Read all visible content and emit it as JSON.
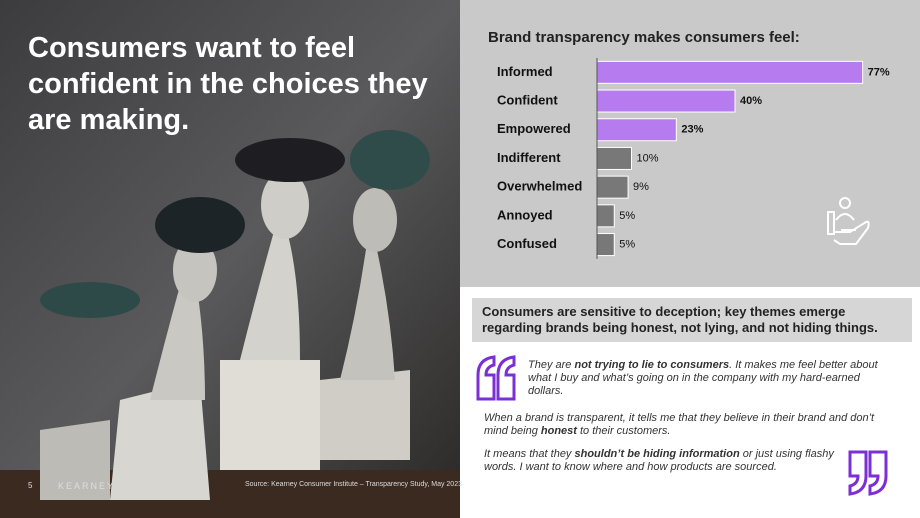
{
  "headline": "Consumers want to feel confident in the choices they are making.",
  "page_number": "5",
  "brand": "KEARNEY",
  "source": "Source: Kearney Consumer Institute – Transparency Study, May 2023",
  "chart_data": {
    "type": "bar",
    "orientation": "horizontal",
    "title": "Brand transparency makes consumers feel:",
    "categories": [
      "Informed",
      "Confident",
      "Empowered",
      "Indifferent",
      "Overwhelmed",
      "Annoyed",
      "Confused"
    ],
    "values": [
      77,
      40,
      23,
      10,
      9,
      5,
      5
    ],
    "value_labels": [
      "77%",
      "40%",
      "23%",
      "10%",
      "9%",
      "5%",
      "5%"
    ],
    "colors": [
      "#b67cef",
      "#b67cef",
      "#b67cef",
      "#787878",
      "#787878",
      "#787878",
      "#787878"
    ],
    "xlim": [
      0,
      100
    ]
  },
  "callout": "Consumers are sensitive to deception; key themes emerge regarding brands being honest, not lying, and not hiding things.",
  "quotes": [
    [
      "They are ",
      "not trying to lie to consumers",
      ". It makes me feel better about what I buy and what’s going on in the company with my hard-earned dollars."
    ],
    [
      "When a brand is transparent, it tells me that they believe in their brand and don’t mind being ",
      "honest",
      " to their customers."
    ],
    [
      "It means that they ",
      "shouldn’t be hiding information",
      " or just using flashy words. I want to know where and how products are sourced."
    ]
  ]
}
